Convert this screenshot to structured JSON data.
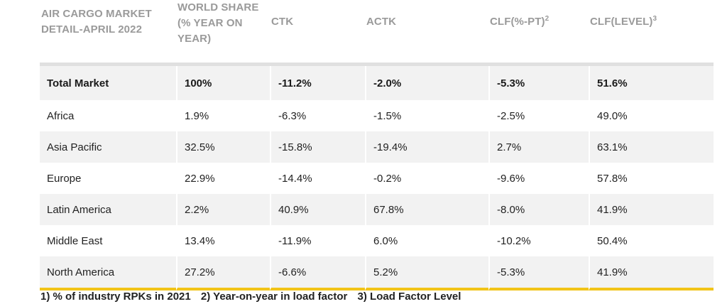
{
  "table": {
    "headers": [
      {
        "lines": [
          "AIR CARGO MARKET",
          "DETAIL-APRIL 2022"
        ],
        "sup": ""
      },
      {
        "lines": [
          "WORLD SHARE",
          "(% YEAR ON",
          "YEAR)"
        ],
        "sup": ""
      },
      {
        "lines": [
          "CTK"
        ],
        "sup": ""
      },
      {
        "lines": [
          "ACTK"
        ],
        "sup": ""
      },
      {
        "lines": [
          "CLF(%-PT)"
        ],
        "sup": "2"
      },
      {
        "lines": [
          "CLF(LEVEL)"
        ],
        "sup": "3"
      }
    ],
    "rows": [
      {
        "region": "Total Market",
        "world_share": "100%",
        "ctk": "-11.2%",
        "actk": "-2.0%",
        "clf_pt": "-5.3%",
        "clf_level": "51.6%"
      },
      {
        "region": "Africa",
        "world_share": "1.9%",
        "ctk": "-6.3%",
        "actk": "-1.5%",
        "clf_pt": "-2.5%",
        "clf_level": "49.0%"
      },
      {
        "region": "Asia Pacific",
        "world_share": "32.5%",
        "ctk": "-15.8%",
        "actk": "-19.4%",
        "clf_pt": "2.7%",
        "clf_level": "63.1%"
      },
      {
        "region": "Europe",
        "world_share": "22.9%",
        "ctk": "-14.4%",
        "actk": "-0.2%",
        "clf_pt": "-9.6%",
        "clf_level": "57.8%"
      },
      {
        "region": "Latin America",
        "world_share": "2.2%",
        "ctk": "40.9%",
        "actk": "67.8%",
        "clf_pt": "-8.0%",
        "clf_level": "41.9%"
      },
      {
        "region": "Middle East",
        "world_share": "13.4%",
        "ctk": "-11.9%",
        "actk": "6.0%",
        "clf_pt": "-10.2%",
        "clf_level": "50.4%"
      },
      {
        "region": "North America",
        "world_share": "27.2%",
        "ctk": "-6.6%",
        "actk": "5.2%",
        "clf_pt": "-5.3%",
        "clf_level": "41.9%"
      }
    ]
  },
  "footnotes": [
    "1) % of industry RPKs in 2021",
    "2) Year-on-year in load factor",
    "3) Load Factor Level"
  ],
  "colors": {
    "header_text": "#9a9a9a",
    "row_shade": "#f2f2f2",
    "accent_rule": "#f2c418"
  }
}
